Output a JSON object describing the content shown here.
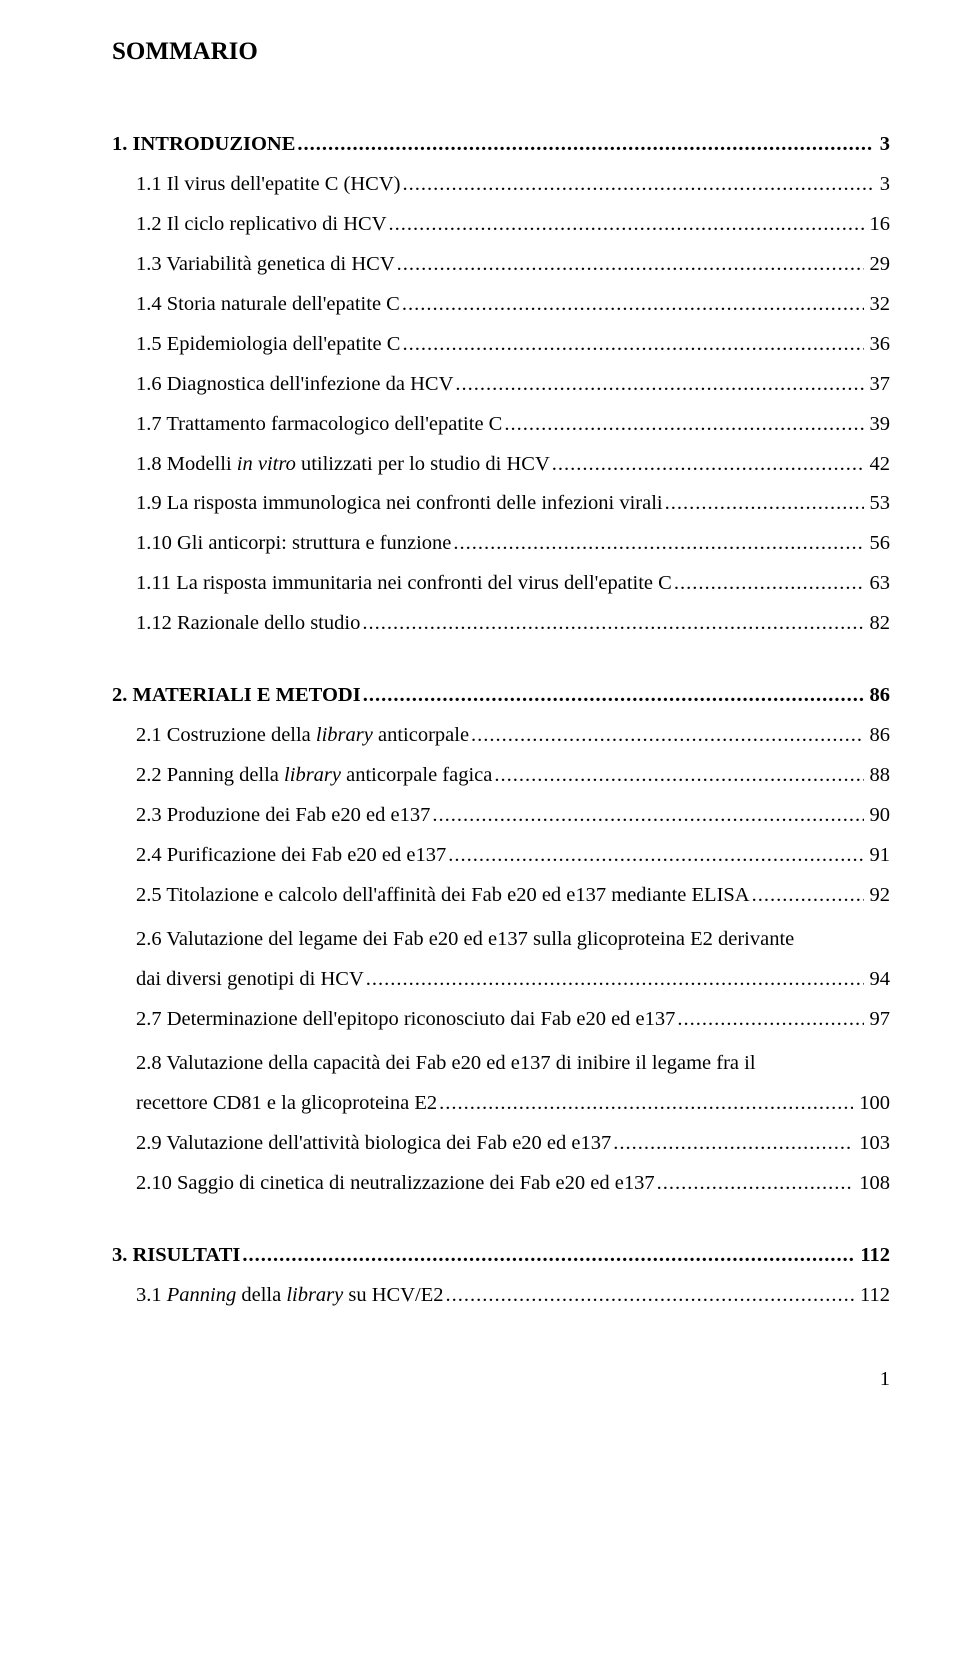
{
  "title": "SOMMARIO",
  "sections": [
    {
      "label": "1. INTRODUZIONE",
      "page": "3"
    },
    {
      "label": "2. MATERIALI E METODI",
      "page": "86"
    },
    {
      "label": "3. RISULTATI",
      "page": "112"
    }
  ],
  "s1": [
    {
      "label": "1.1 Il virus dell'epatite C (HCV)",
      "page": "3"
    },
    {
      "label": "1.2 Il ciclo replicativo di HCV",
      "page": "16"
    },
    {
      "label": "1.3 Variabilità genetica di HCV",
      "page": "29"
    },
    {
      "label": "1.4 Storia naturale dell'epatite C",
      "page": "32"
    },
    {
      "label": "1.5 Epidemiologia dell'epatite C",
      "page": "36"
    },
    {
      "label": "1.6 Diagnostica dell'infezione da HCV",
      "page": "37"
    },
    {
      "label": "1.7 Trattamento farmacologico dell'epatite C",
      "page": "39"
    },
    {
      "label_pre": "1.8 Modelli ",
      "label_it": "in vitro",
      "label_post": " utilizzati per lo studio di HCV",
      "page": "42"
    },
    {
      "label": "1.9 La risposta immunologica nei confronti delle infezioni virali",
      "page": "53"
    },
    {
      "label": "1.10 Gli anticorpi: struttura e funzione",
      "page": "56"
    },
    {
      "label": "1.11 La risposta immunitaria nei confronti del virus dell'epatite C",
      "page": "63"
    },
    {
      "label": "1.12 Razionale dello studio",
      "page": "82"
    }
  ],
  "s2": [
    {
      "label_pre": "2.1 Costruzione della ",
      "label_it": "library",
      "label_post": " anticorpale",
      "page": "86"
    },
    {
      "label_pre": "2.2 Panning della ",
      "label_it": "library",
      "label_post": " anticorpale fagica",
      "page": "88"
    },
    {
      "label": "2.3 Produzione dei Fab e20 ed e137",
      "page": "90"
    },
    {
      "label": "2.4 Purificazione dei Fab e20 ed e137",
      "page": "91"
    },
    {
      "label": "2.5 Titolazione e calcolo dell'affinità dei Fab e20 ed e137 mediante ELISA",
      "page": "92"
    }
  ],
  "s2w1": {
    "line1": "2.6 Valutazione del legame dei Fab e20 ed e137 sulla glicoproteina E2 derivante",
    "line2": "dai diversi genotipi di HCV",
    "page": "94"
  },
  "s2b": [
    {
      "label": "2.7 Determinazione dell'epitopo riconosciuto dai Fab e20 ed e137",
      "page": "97"
    }
  ],
  "s2w2": {
    "line1": "2.8 Valutazione della capacità dei Fab e20 ed e137 di inibire il legame fra il",
    "line2": "recettore CD81 e la glicoproteina E2",
    "page": "100"
  },
  "s2c": [
    {
      "label": "2.9 Valutazione dell'attività biologica dei Fab e20 ed e137",
      "page": "103"
    },
    {
      "label": "2.10 Saggio di cinetica di neutralizzazione dei Fab e20 ed e137",
      "page": "108"
    }
  ],
  "s3": [
    {
      "label_pre": "3.1 ",
      "label_it": "Panning",
      "label_post_pre": " della ",
      "label_it2": "library",
      "label_post": " su HCV/E2",
      "page": "112"
    }
  ],
  "pagenum": "1"
}
